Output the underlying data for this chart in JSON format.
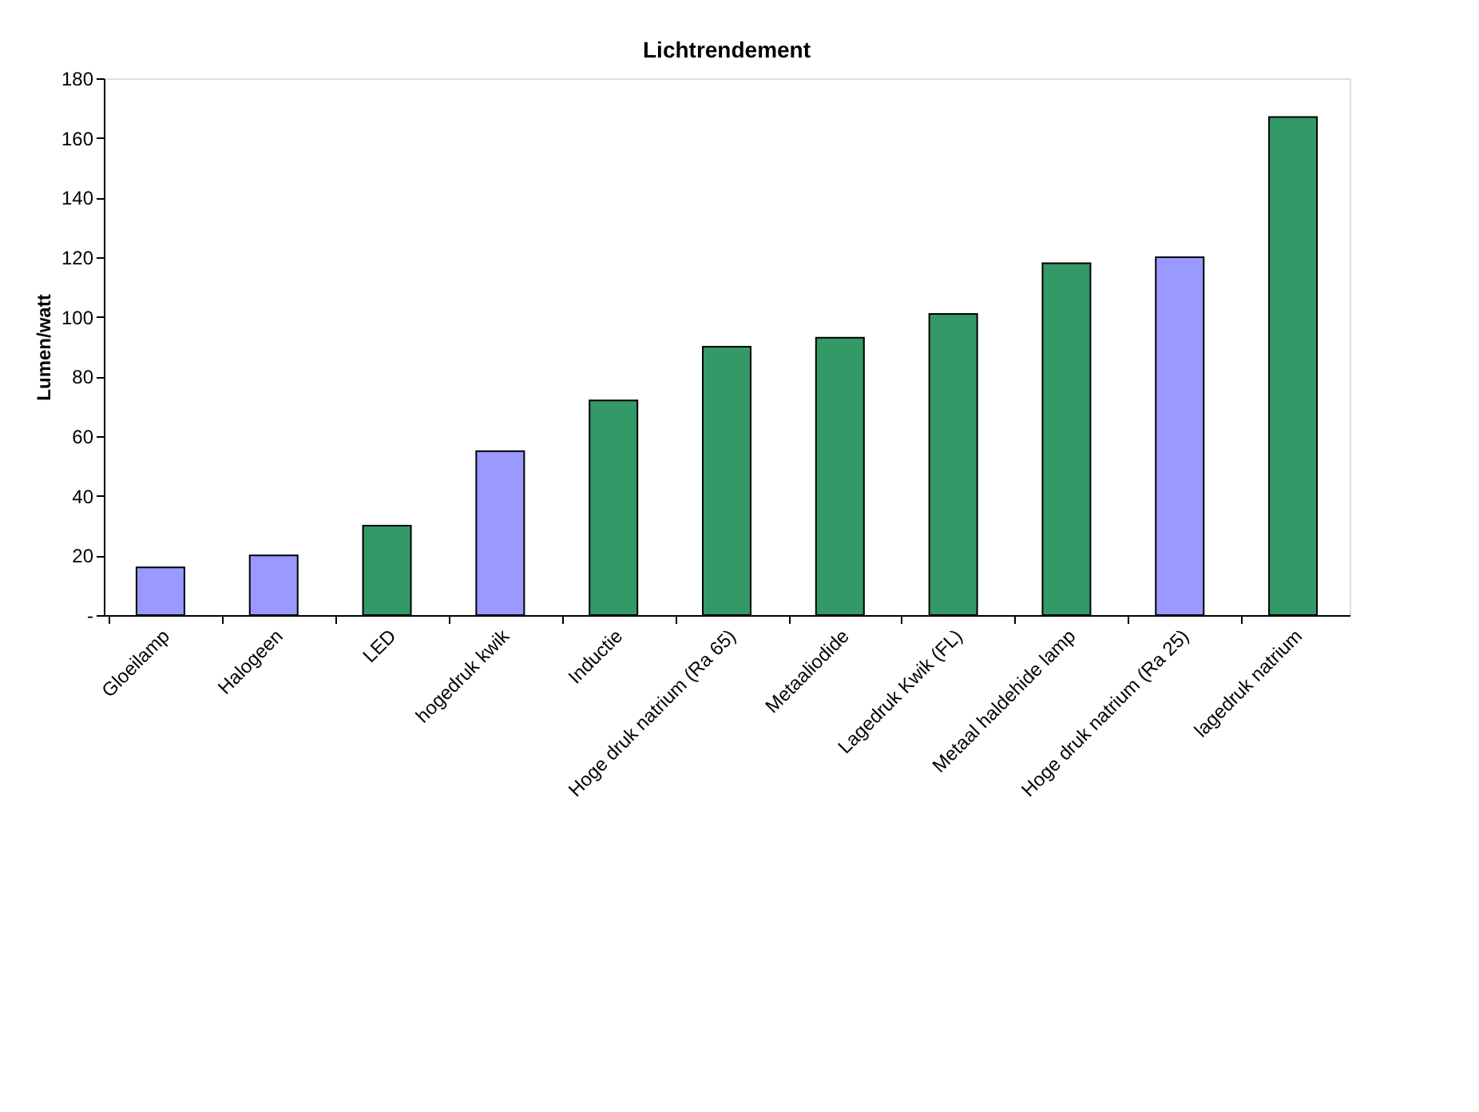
{
  "chart_data": {
    "type": "bar",
    "title": "Lichtrendement",
    "ylabel": "Lumen/watt",
    "categories": [
      "Gloeilamp",
      "Halogeen",
      "LED",
      "hogedruk kwik",
      "Inductie",
      "Hoge druk natrium (Ra 65)",
      "Metaaliodide",
      "Lagedruk Kwik (FL)",
      "Metaal haldehide lamp",
      "Hoge druk natrium (Ra 25)",
      "lagedruk natrium"
    ],
    "values": [
      16,
      20,
      30,
      55,
      72,
      90,
      93,
      101,
      118,
      120,
      167
    ],
    "colors": [
      "#9999ff",
      "#9999ff",
      "#339966",
      "#9999ff",
      "#339966",
      "#339966",
      "#339966",
      "#339966",
      "#339966",
      "#9999ff",
      "#339966"
    ],
    "ylim": [
      0,
      180
    ],
    "yticks": [
      {
        "value": 0,
        "label": "-"
      },
      20,
      40,
      60,
      80,
      100,
      120,
      140,
      160,
      180
    ],
    "grid": false
  }
}
